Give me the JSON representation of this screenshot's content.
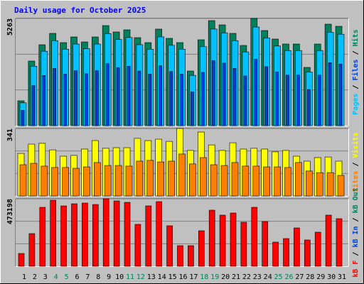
{
  "chart_data": [
    {
      "type": "bar",
      "title": "Daily usage for October 2025",
      "categories": [
        "1",
        "2",
        "3",
        "4",
        "5",
        "6",
        "7",
        "8",
        "9",
        "10",
        "11",
        "12",
        "13",
        "14",
        "15",
        "16",
        "17",
        "18",
        "19",
        "20",
        "21",
        "22",
        "23",
        "24",
        "25",
        "26",
        "27",
        "28",
        "29",
        "30",
        "31"
      ],
      "category_colors": [
        "#000000",
        "#000000",
        "#000000",
        "#00805c",
        "#00805c",
        "#000000",
        "#000000",
        "#000000",
        "#000000",
        "#000000",
        "#00805c",
        "#00805c",
        "#000000",
        "#000000",
        "#000000",
        "#000000",
        "#000000",
        "#00805c",
        "#00805c",
        "#000000",
        "#000000",
        "#000000",
        "#000000",
        "#000000",
        "#00805c",
        "#00805c",
        "#000000",
        "#000000",
        "#000000",
        "#000000",
        "#000000"
      ],
      "legend_separator": " / ",
      "ylim": [
        0,
        5263
      ],
      "yticks": [
        5263
      ],
      "series": [
        {
          "name": "Pages",
          "color": "#00c0ff",
          "values": [
            1122,
            2917,
            3655,
            4169,
            3752,
            4008,
            3783,
            4008,
            4521,
            4232,
            4329,
            3975,
            3752,
            4361,
            3944,
            3752,
            2468,
            3880,
            4745,
            4553,
            4169,
            3623,
            4842,
            4296,
            3912,
            3687,
            3687,
            2629,
            3687,
            4585,
            4489
          ]
        },
        {
          "name": "Files",
          "color": "#0040e0",
          "values": [
            756,
            1966,
            2463,
            2809,
            2528,
            2701,
            2549,
            2701,
            3047,
            2852,
            2917,
            2679,
            2528,
            2939,
            2658,
            2528,
            1663,
            2615,
            3198,
            3068,
            2809,
            2442,
            3263,
            2895,
            2636,
            2485,
            2485,
            1772,
            2485,
            3090,
            3025
          ]
        },
        {
          "name": "Hits",
          "color": "#00805c",
          "values": [
            1220,
            3171,
            3973,
            4531,
            4078,
            4356,
            4112,
            4356,
            4914,
            4600,
            4705,
            4321,
            4078,
            4740,
            4287,
            4078,
            2683,
            4217,
            5158,
            4949,
            4531,
            3938,
            5263,
            4670,
            4252,
            4008,
            4008,
            2858,
            4008,
            4984,
            4879
          ]
        }
      ]
    },
    {
      "type": "bar",
      "ylim": [
        0,
        341
      ],
      "yticks": [
        341
      ],
      "series": [
        {
          "name": "Sites",
          "color": "#ff8000",
          "values": [
            158,
            165,
            151,
            144,
            144,
            140,
            147,
            169,
            154,
            154,
            151,
            176,
            180,
            172,
            176,
            212,
            162,
            194,
            158,
            154,
            169,
            151,
            151,
            147,
            147,
            144,
            169,
            126,
            118,
            118,
            104
          ]
        },
        {
          "name": "Visits",
          "color": "#ffff00",
          "values": [
            215,
            262,
            266,
            233,
            201,
            205,
            237,
            280,
            241,
            244,
            244,
            291,
            280,
            287,
            276,
            341,
            230,
            323,
            258,
            230,
            269,
            237,
            241,
            237,
            223,
            230,
            201,
            176,
            194,
            197,
            176
          ]
        }
      ]
    },
    {
      "type": "bar",
      "ylim": [
        0,
        473198
      ],
      "yticks": [
        473198
      ],
      "series": [
        {
          "name": "kB F",
          "color": "#ff0000",
          "values": [
            89658,
            229126,
            413423,
            463233,
            423385,
            438328,
            443309,
            433347,
            473198,
            458252,
            448290,
            293879,
            423385,
            453271,
            283917,
            144449,
            144449,
            249050,
            393499,
            358632,
            373575,
            308822,
            413423,
            313803,
            169354,
            194259,
            268974,
            184297,
            239088,
            358632,
            333727
          ]
        }
      ],
      "legend_extra": [
        {
          "name": "kB In",
          "color": "#0040e0"
        },
        {
          "name": "kB Out",
          "color": "#00805c"
        }
      ]
    }
  ]
}
